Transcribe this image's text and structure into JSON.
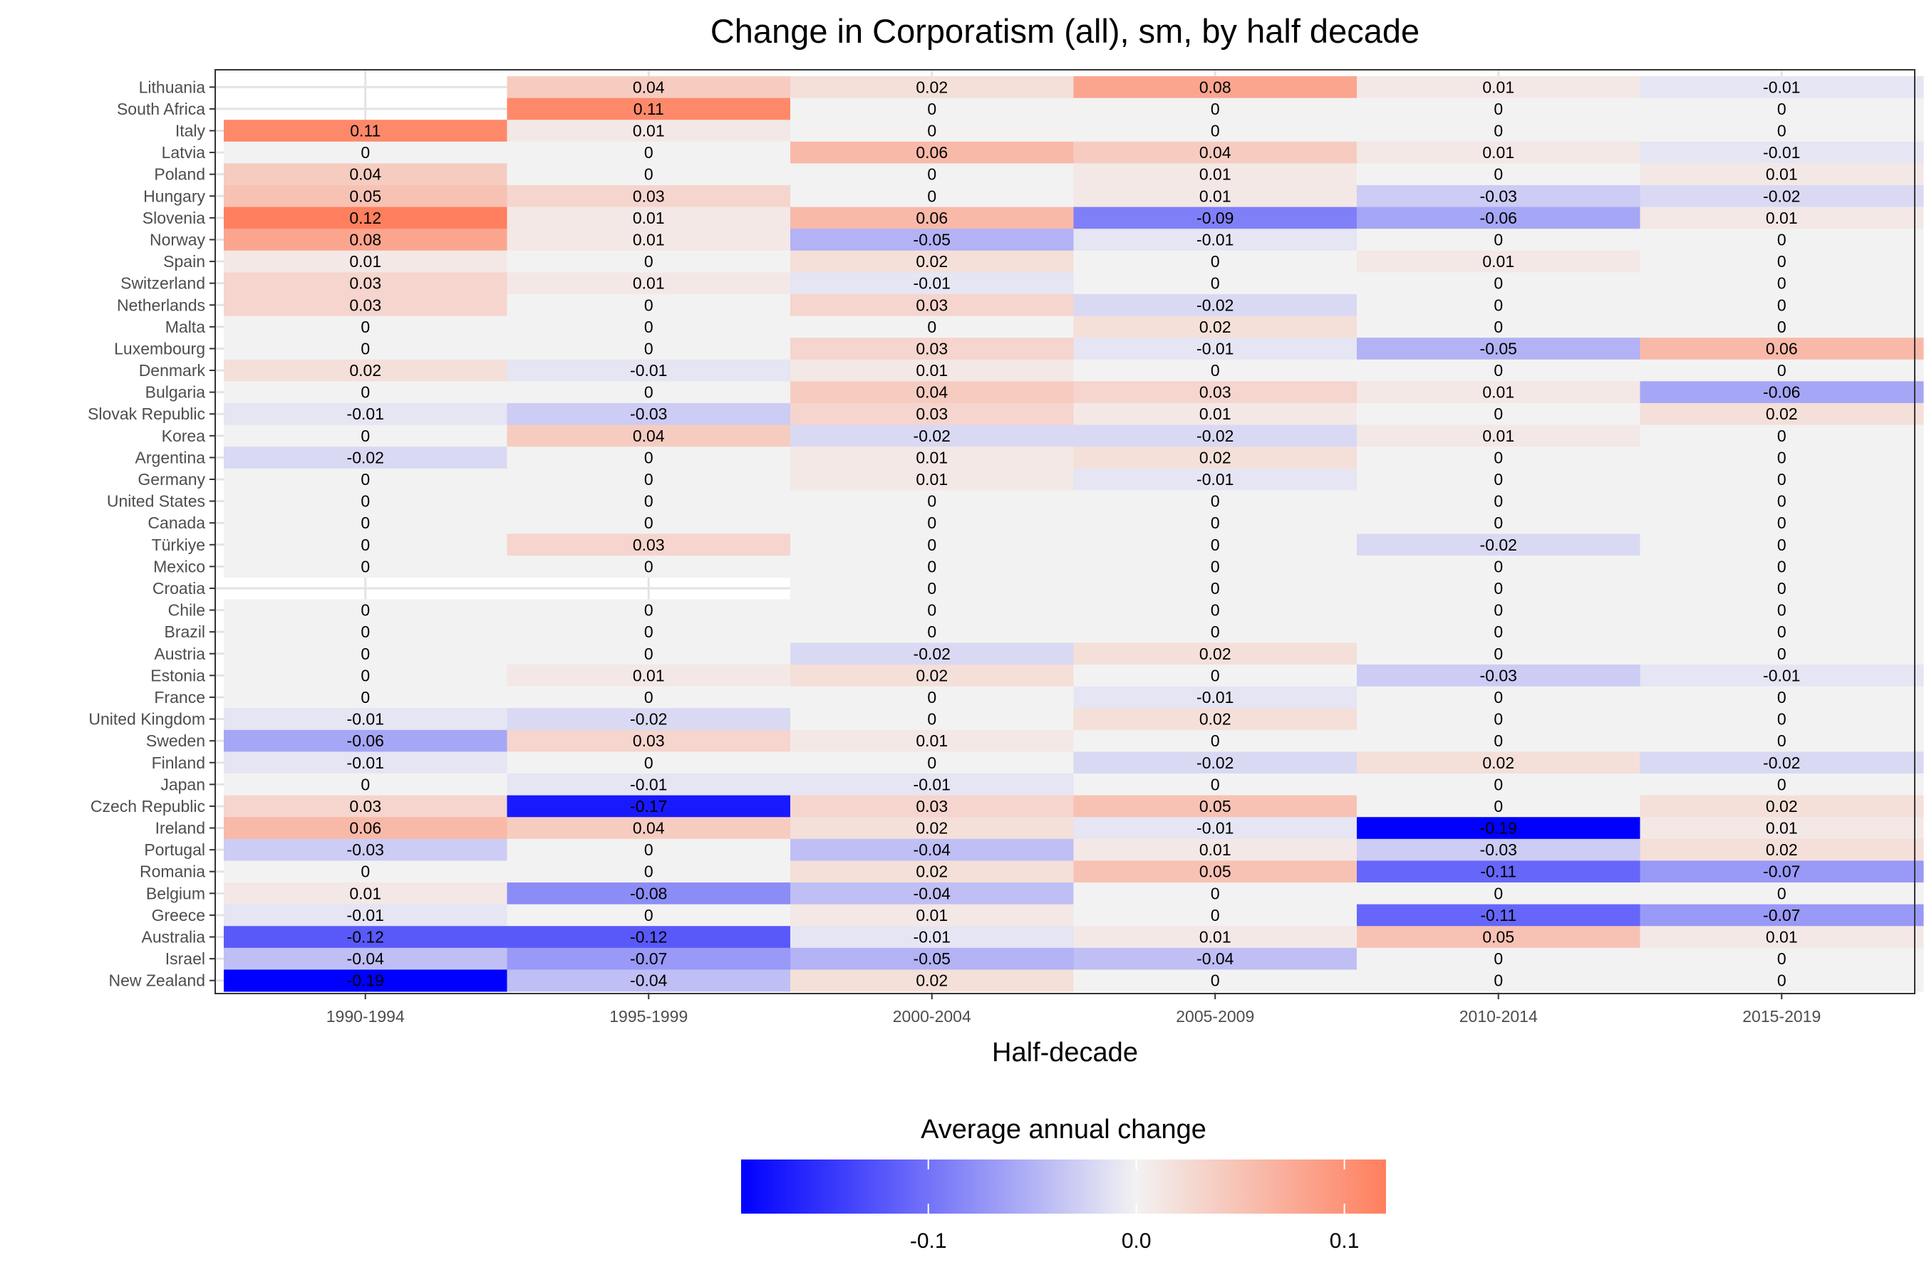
{
  "chart_data": {
    "type": "heatmap",
    "title": "Change in Corporatism (all), sm, by half decade",
    "xlabel": "Half-decade",
    "ylabel": "",
    "x": [
      "1990-1994",
      "1995-1999",
      "2000-2004",
      "2005-2009",
      "2010-2014",
      "2015-2019"
    ],
    "y": [
      "Lithuania",
      "South Africa",
      "Italy",
      "Latvia",
      "Poland",
      "Hungary",
      "Slovenia",
      "Norway",
      "Spain",
      "Switzerland",
      "Netherlands",
      "Malta",
      "Luxembourg",
      "Denmark",
      "Bulgaria",
      "Slovak Republic",
      "Korea",
      "Argentina",
      "Germany",
      "United States",
      "Canada",
      "Türkiye",
      "Mexico",
      "Croatia",
      "Chile",
      "Brazil",
      "Austria",
      "Estonia",
      "France",
      "United Kingdom",
      "Sweden",
      "Finland",
      "Japan",
      "Czech Republic",
      "Ireland",
      "Portugal",
      "Romania",
      "Belgium",
      "Greece",
      "Australia",
      "Israel",
      "New Zealand"
    ],
    "values": [
      [
        null,
        0.04,
        0.02,
        0.08,
        0.01,
        -0.01
      ],
      [
        null,
        0.11,
        0,
        0,
        0,
        0
      ],
      [
        0.11,
        0.01,
        0,
        0,
        0,
        0
      ],
      [
        0,
        0,
        0.06,
        0.04,
        0.01,
        -0.01
      ],
      [
        0.04,
        0,
        0,
        0.01,
        0,
        0.01
      ],
      [
        0.05,
        0.03,
        0,
        0.01,
        -0.03,
        -0.02
      ],
      [
        0.12,
        0.01,
        0.06,
        -0.09,
        -0.06,
        0.01
      ],
      [
        0.08,
        0.01,
        -0.05,
        -0.01,
        0,
        0
      ],
      [
        0.01,
        0,
        0.02,
        0,
        0.01,
        0
      ],
      [
        0.03,
        0.01,
        -0.01,
        0,
        0,
        0
      ],
      [
        0.03,
        0,
        0.03,
        -0.02,
        0,
        0
      ],
      [
        0,
        0,
        0,
        0.02,
        0,
        0
      ],
      [
        0,
        0,
        0.03,
        -0.01,
        -0.05,
        0.06
      ],
      [
        0.02,
        -0.01,
        0.01,
        0,
        0,
        0
      ],
      [
        0,
        0,
        0.04,
        0.03,
        0.01,
        -0.06
      ],
      [
        -0.01,
        -0.03,
        0.03,
        0.01,
        0,
        0.02
      ],
      [
        0,
        0.04,
        -0.02,
        -0.02,
        0.01,
        0
      ],
      [
        -0.02,
        0,
        0.01,
        0.02,
        0,
        0
      ],
      [
        0,
        0,
        0.01,
        -0.01,
        0,
        0
      ],
      [
        0,
        0,
        0,
        0,
        0,
        0
      ],
      [
        0,
        0,
        0,
        0,
        0,
        0
      ],
      [
        0,
        0.03,
        0,
        0,
        -0.02,
        0
      ],
      [
        0,
        0,
        0,
        0,
        0,
        0
      ],
      [
        null,
        null,
        0,
        0,
        0,
        0
      ],
      [
        0,
        0,
        0,
        0,
        0,
        0
      ],
      [
        0,
        0,
        0,
        0,
        0,
        0
      ],
      [
        0,
        0,
        -0.02,
        0.02,
        0,
        0
      ],
      [
        0,
        0.01,
        0.02,
        0,
        -0.03,
        -0.01
      ],
      [
        0,
        0,
        0,
        -0.01,
        0,
        0
      ],
      [
        -0.01,
        -0.02,
        0,
        0.02,
        0,
        0
      ],
      [
        -0.06,
        0.03,
        0.01,
        0,
        0,
        0
      ],
      [
        -0.01,
        0,
        0,
        -0.02,
        0.02,
        -0.02
      ],
      [
        0,
        -0.01,
        -0.01,
        0,
        0,
        0
      ],
      [
        0.03,
        -0.17,
        0.03,
        0.05,
        0,
        0.02
      ],
      [
        0.06,
        0.04,
        0.02,
        -0.01,
        -0.19,
        0.01
      ],
      [
        -0.03,
        0,
        -0.04,
        0.01,
        -0.03,
        0.02
      ],
      [
        0,
        0,
        0.02,
        0.05,
        -0.11,
        -0.07
      ],
      [
        0.01,
        -0.08,
        -0.04,
        0,
        0,
        0
      ],
      [
        -0.01,
        0,
        0.01,
        0,
        -0.11,
        -0.07
      ],
      [
        -0.12,
        -0.12,
        -0.01,
        0.01,
        0.05,
        0.01
      ],
      [
        -0.04,
        -0.07,
        -0.05,
        -0.04,
        0,
        0
      ],
      [
        -0.19,
        -0.04,
        0.02,
        0,
        0,
        0
      ]
    ],
    "legend": {
      "title": "Average annual change",
      "position": "bottom",
      "ticks": [
        -0.1,
        0.0,
        0.1
      ],
      "tick_labels": [
        "-0.1",
        "0.0",
        "0.1"
      ],
      "min": -0.19,
      "max": 0.12
    },
    "colors": {
      "low": "#0000ff",
      "mid": "#f2f2f2",
      "high": "#ff7f5e",
      "grid": "#e3e3e3",
      "axis": "#333333"
    },
    "grid": true
  }
}
